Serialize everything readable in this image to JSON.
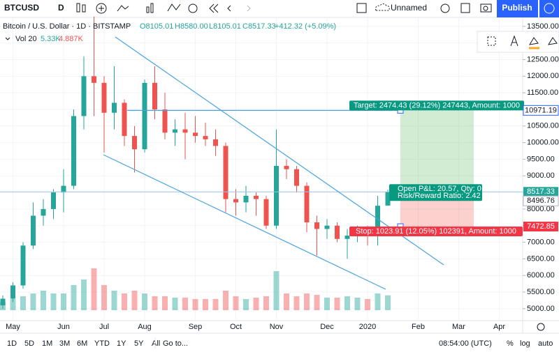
{
  "toolbar": {
    "symbol": "BTCUSD",
    "interval": "D",
    "layout": "Unnamed",
    "publish": "Publish"
  },
  "legend": {
    "name": "Bitcoin / U.S. Dollar · 1D · BITSTAMP",
    "open": "O8105.01",
    "high": "H8580.00",
    "low": "L8105.01",
    "close": "C8517.33",
    "change": "+412.32 (+5.09%)",
    "vol_name": "Vol 20",
    "vol_value": "5.33K",
    "vol_ma": "4.887K"
  },
  "position": {
    "target_label": "Target: 2474.43 (29.12%) 247443, Amount: 1000",
    "stop_label": "Stop: 1023.91 (12.05%) 102391, Amount: 1000",
    "pnl_label": "Open P&L: 20.57, Qty: 0",
    "rr_label": "Risk/Reward Ratio: 2.42",
    "target": 10971.19,
    "entry": 8496.76,
    "stop": 7472.85,
    "last": 8517.33
  },
  "bottom_bar": {
    "ranges": [
      "1D",
      "5D",
      "1M",
      "3M",
      "6M",
      "YTD",
      "1Y",
      "5Y",
      "All"
    ],
    "goto": "Go to...",
    "time": "08:54:00 (UTC)",
    "percent": "%",
    "log": "log",
    "auto": "auto"
  },
  "chart_data": {
    "type": "candlestick",
    "categories": [
      null,
      "May",
      null,
      null,
      null,
      null,
      "Jun",
      null,
      null,
      null,
      "Jul",
      null,
      null,
      null,
      "Aug",
      null,
      null,
      null,
      null,
      "Sep",
      null,
      null,
      null,
      "Oct",
      null,
      null,
      null,
      "Nov",
      null,
      null,
      null,
      null,
      "Dec",
      null,
      null,
      null,
      "2020",
      null,
      null,
      null,
      null,
      "Feb",
      null,
      null,
      null,
      "Mar",
      null,
      null,
      null,
      "Apr",
      null
    ],
    "open": [
      5100,
      5300,
      5700,
      6900,
      7800,
      8000,
      8500,
      8700,
      10800,
      12000,
      11800,
      10900,
      11200,
      10200,
      9800,
      11800,
      11000,
      10300,
      10400,
      10300,
      10200,
      10100,
      9900,
      8300,
      8200,
      8400,
      8300,
      7500,
      9300,
      9200,
      8700,
      7600,
      7400,
      7500,
      7100,
      7200,
      7300,
      7200,
      8105.01,
      null,
      null,
      null,
      null,
      null,
      null,
      null,
      null,
      null,
      null,
      null,
      null
    ],
    "high": [
      5400,
      5800,
      7000,
      8200,
      8300,
      8600,
      9200,
      11000,
      12600,
      13800,
      12000,
      12300,
      11300,
      10500,
      11900,
      12300,
      11500,
      10700,
      10900,
      10800,
      10600,
      10400,
      10000,
      8600,
      8700,
      8500,
      8400,
      10400,
      9500,
      9300,
      8800,
      7800,
      7700,
      7600,
      7400,
      7500,
      7500,
      8400,
      8580,
      null,
      null,
      null,
      null,
      null,
      null,
      null,
      null,
      null,
      null,
      null,
      null
    ],
    "low": [
      5000,
      5200,
      5600,
      6800,
      7500,
      7700,
      7900,
      8600,
      10400,
      10800,
      9700,
      10400,
      9900,
      9100,
      9700,
      10700,
      10100,
      9900,
      9500,
      10000,
      9900,
      9600,
      7900,
      7800,
      7900,
      7800,
      7400,
      7400,
      8900,
      8500,
      7300,
      6600,
      7100,
      7000,
      6500,
      7000,
      6900,
      6900,
      8105.01,
      null,
      null,
      null,
      null,
      null,
      null,
      null,
      null,
      null,
      null,
      null,
      null
    ],
    "close": [
      5300,
      5700,
      6900,
      7800,
      8000,
      8500,
      8700,
      10800,
      12000,
      11800,
      10900,
      11200,
      10200,
      9800,
      11800,
      11000,
      10300,
      10400,
      10300,
      10200,
      10100,
      9900,
      8300,
      8200,
      8400,
      8300,
      7500,
      9300,
      9200,
      8700,
      7600,
      7400,
      7500,
      7100,
      7200,
      7300,
      7200,
      8100,
      8517.33,
      null,
      null,
      null,
      null,
      null,
      null,
      null,
      null,
      null,
      null,
      null,
      null
    ],
    "volume": [
      3000,
      4000,
      5000,
      6000,
      7000,
      6000,
      6000,
      9000,
      11000,
      15000,
      9000,
      7000,
      6000,
      7000,
      6000,
      5000,
      5000,
      4500,
      4500,
      4000,
      4000,
      4000,
      7000,
      5000,
      4000,
      4500,
      5000,
      14000,
      6000,
      5000,
      6000,
      5500,
      4500,
      4500,
      5000,
      4500,
      4000,
      6000,
      5330,
      null,
      null,
      null,
      null,
      null,
      null,
      null,
      null,
      null,
      null,
      null,
      null
    ],
    "up_color": "#26a69a",
    "down_color": "#ef5350",
    "ylim": [
      4640,
      13770
    ],
    "volume_ylim": [
      0,
      20000
    ],
    "yticks": [
      {
        "value": 5000,
        "label": "5000.00"
      },
      {
        "value": 5500,
        "label": "5500.00"
      },
      {
        "value": 6000,
        "label": "6000.00"
      },
      {
        "value": 6500,
        "label": "6500.00"
      },
      {
        "value": 7000,
        "label": "7000.00"
      },
      {
        "value": 7500,
        "label": "7500.00"
      },
      {
        "value": 8000,
        "label": "8000.00"
      },
      {
        "value": 8500,
        "label": "8500.00"
      },
      {
        "value": 9000,
        "label": "9000.00"
      },
      {
        "value": 9500,
        "label": "9500.00"
      },
      {
        "value": 10000,
        "label": "10000.00"
      },
      {
        "value": 10500,
        "label": "10500.00"
      },
      {
        "value": 11000,
        "label": "11000.00"
      },
      {
        "value": 11500,
        "label": "11500.00"
      },
      {
        "value": 12000,
        "label": "12000.00"
      },
      {
        "value": 12500,
        "label": "12500.00"
      },
      {
        "value": 13000,
        "label": "13000.00"
      },
      {
        "value": 13500,
        "label": "13500.00"
      }
    ],
    "grid": true
  }
}
